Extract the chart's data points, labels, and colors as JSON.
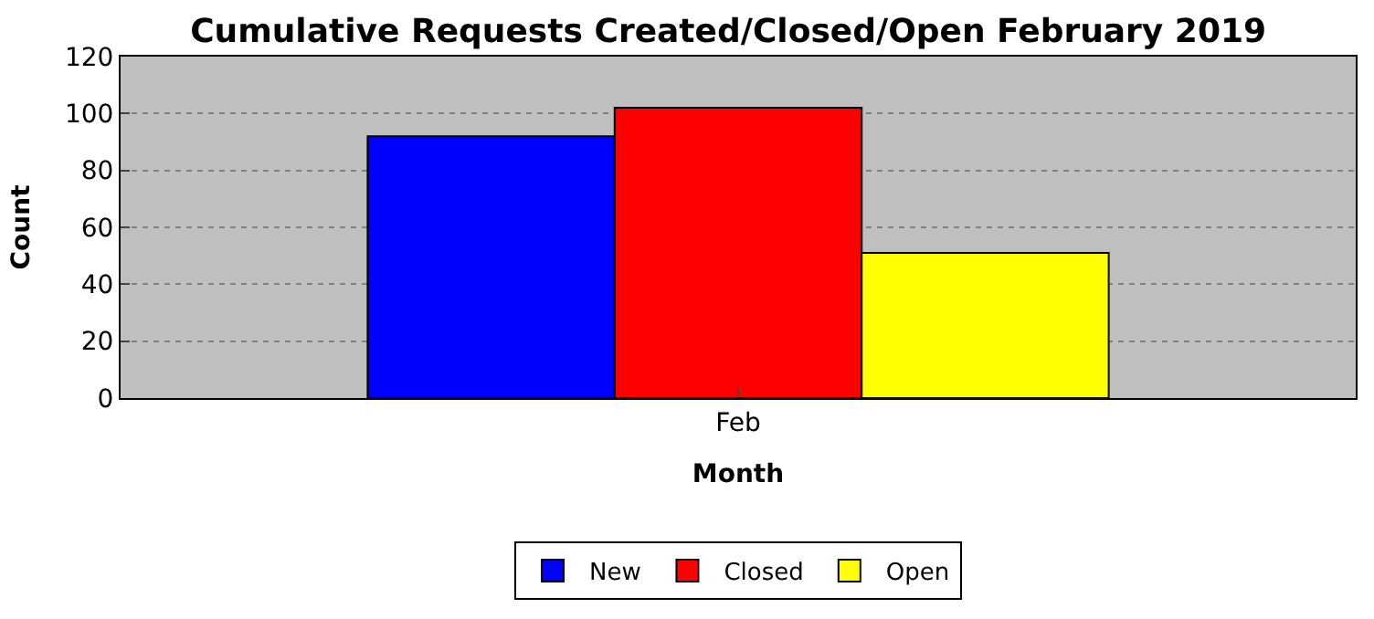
{
  "chart_data": {
    "type": "bar",
    "title": "Cumulative Requests Created/Closed/Open February 2019",
    "xlabel": "Month",
    "ylabel": "Count",
    "categories": [
      "Feb"
    ],
    "series": [
      {
        "name": "New",
        "color": "#0000ff",
        "values": [
          92
        ]
      },
      {
        "name": "Closed",
        "color": "#ff0000",
        "values": [
          102
        ]
      },
      {
        "name": "Open",
        "color": "#ffff00",
        "values": [
          51
        ]
      }
    ],
    "ylim": [
      0,
      120
    ],
    "yticks": [
      0,
      20,
      40,
      60,
      80,
      100,
      120
    ],
    "grid": "y",
    "legend": "bottom"
  }
}
